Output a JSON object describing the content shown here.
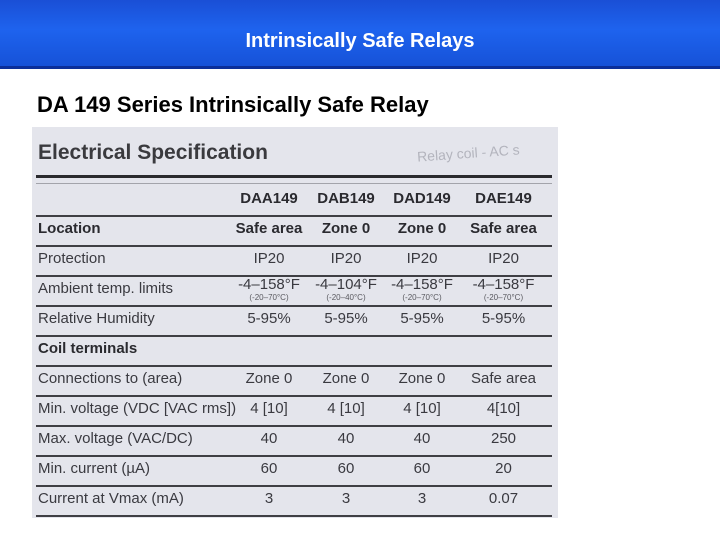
{
  "header": {
    "title": "Intrinsically Safe Relays"
  },
  "subtitle": "DA 149 Series Intrinsically Safe Relay",
  "spec": {
    "heading": "Electrical Specification",
    "ghost_text": "Relay coil - AC s",
    "models": [
      "DAA149",
      "DAB149",
      "DAD149",
      "DAE149"
    ],
    "location": {
      "label": "Location",
      "values": [
        "Safe area",
        "Zone 0",
        "Zone 0",
        "Safe area"
      ]
    },
    "protection": {
      "label": "Protection",
      "values": [
        "IP20",
        "IP20",
        "IP20",
        "IP20"
      ]
    },
    "ambient": {
      "label": "Ambient temp. limits",
      "values": [
        "-4–158°F",
        "-4–104°F",
        "-4–158°F",
        "-4–158°F"
      ],
      "subs": [
        "(-20–70°C)",
        "(-20–40°C)",
        "(-20–70°C)",
        "(-20–70°C)"
      ]
    },
    "humidity": {
      "label": "Relative Humidity",
      "values": [
        "5-95%",
        "5-95%",
        "5-95%",
        "5-95%"
      ]
    },
    "coil_section": "Coil terminals",
    "connections": {
      "label": "Connections to (area)",
      "values": [
        "Zone 0",
        "Zone 0",
        "Zone 0",
        "Safe area"
      ]
    },
    "min_voltage": {
      "label": "Min. voltage (VDC [VAC rms])",
      "values": [
        "4 [10]",
        "4 [10]",
        "4 [10]",
        "4[10]"
      ]
    },
    "max_voltage": {
      "label": "Max. voltage (VAC/DC)",
      "values": [
        "40",
        "40",
        "40",
        "250"
      ]
    },
    "min_current": {
      "label": "Min. current (µA)",
      "values": [
        "60",
        "60",
        "60",
        "20"
      ]
    },
    "current_vmax": {
      "label": "Current at Vmax (mA)",
      "values": [
        "3",
        "3",
        "3",
        "0.07"
      ]
    }
  }
}
